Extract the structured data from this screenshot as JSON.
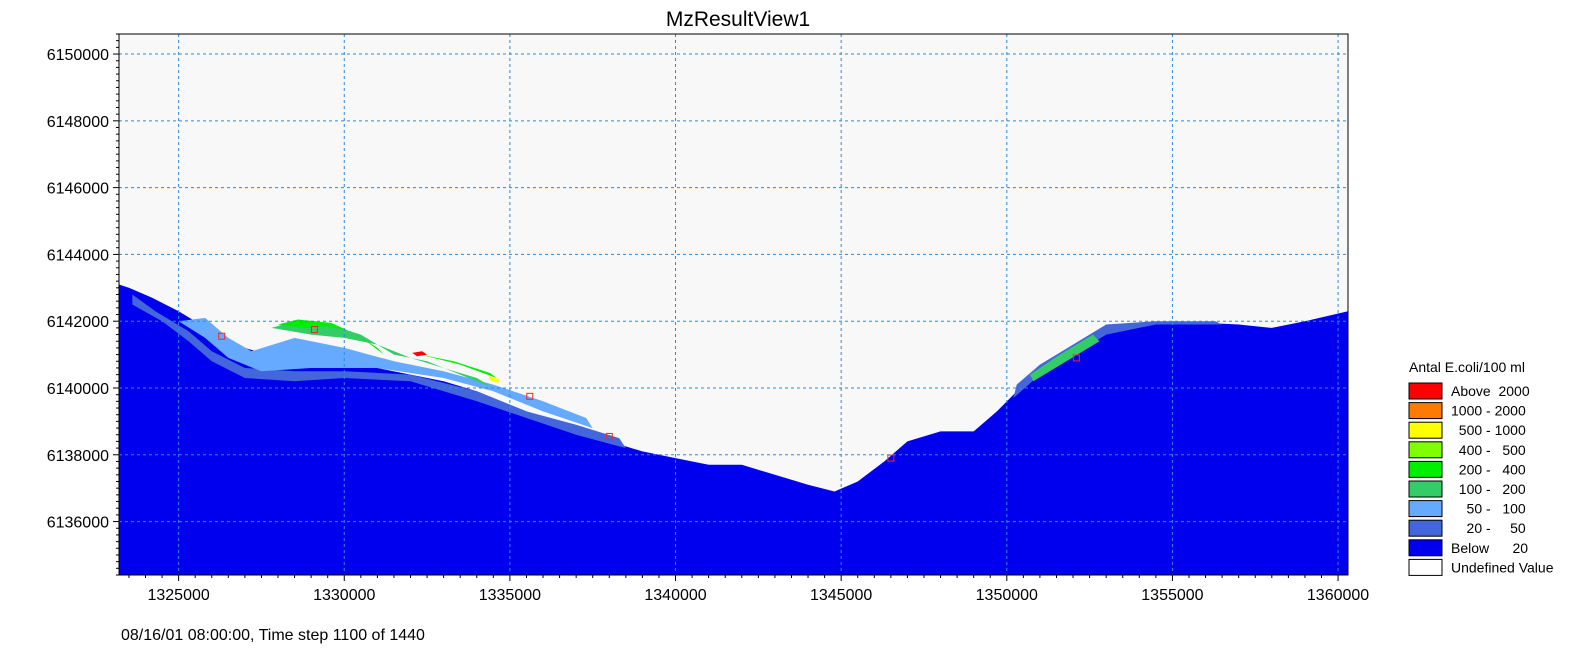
{
  "chart_data": {
    "type": "heatmap",
    "title": "MzResultView1",
    "status_text": "08/16/01 08:00:00, Time step 1100 of 1440",
    "xlim": [
      1323200,
      1360300
    ],
    "ylim": [
      6134400,
      6150600
    ],
    "grid": true,
    "grid_color": "#2a8ae0",
    "background_color": "#f8f8f8",
    "x_ticks": [
      1325000,
      1330000,
      1335000,
      1340000,
      1345000,
      1350000,
      1355000,
      1360000
    ],
    "x_tick_labels": [
      "1325000",
      "1330000",
      "1335000",
      "1340000",
      "1345000",
      "1350000",
      "1355000",
      "1360000"
    ],
    "y_ticks": [
      6136000,
      6138000,
      6140000,
      6142000,
      6144000,
      6146000,
      6148000,
      6150000
    ],
    "y_tick_labels": [
      "6136000",
      "6138000",
      "6140000",
      "6142000",
      "6144000",
      "6146000",
      "6148000",
      "6150000"
    ],
    "legend": {
      "title": "Antal E.coli/100 ml",
      "placement": "right",
      "items": [
        {
          "label": "Above  2000",
          "color": "#ff0000"
        },
        {
          "label": "1000 - 2000",
          "color": "#ff7a00"
        },
        {
          "label": "  500 - 1000",
          "color": "#ffff00"
        },
        {
          "label": "  400 -   500",
          "color": "#7fff00"
        },
        {
          "label": "  200 -   400",
          "color": "#00ee00"
        },
        {
          "label": "  100 -   200",
          "color": "#33cc66"
        },
        {
          "label": "    50 -   100",
          "color": "#66aaff"
        },
        {
          "label": "    20 -     50",
          "color": "#4466dd"
        },
        {
          "label": "Below      20",
          "color": "#0000ee"
        },
        {
          "label": "Undefined Value",
          "color": "#ffffff"
        }
      ]
    },
    "regions": [
      {
        "name": "below-20",
        "color": "#0000ee",
        "points": [
          [
            1323200,
            6143100
          ],
          [
            1323500,
            6143000
          ],
          [
            1324200,
            6142700
          ],
          [
            1325000,
            6142300
          ],
          [
            1326000,
            6141700
          ],
          [
            1327000,
            6141200
          ],
          [
            1328000,
            6140900
          ],
          [
            1329000,
            6140800
          ],
          [
            1330000,
            6140700
          ],
          [
            1331000,
            6140600
          ],
          [
            1332000,
            6140400
          ],
          [
            1333000,
            6140200
          ],
          [
            1334000,
            6139900
          ],
          [
            1335000,
            6139500
          ],
          [
            1336000,
            6139100
          ],
          [
            1337000,
            6138700
          ],
          [
            1338000,
            6138400
          ],
          [
            1339000,
            6138100
          ],
          [
            1340000,
            6137900
          ],
          [
            1341000,
            6137700
          ],
          [
            1342000,
            6137700
          ],
          [
            1343000,
            6137400
          ],
          [
            1344000,
            6137100
          ],
          [
            1344800,
            6136900
          ],
          [
            1345500,
            6137200
          ],
          [
            1346300,
            6137800
          ],
          [
            1347000,
            6138400
          ],
          [
            1348000,
            6138700
          ],
          [
            1349000,
            6138700
          ],
          [
            1349700,
            6139300
          ],
          [
            1350500,
            6140100
          ],
          [
            1351500,
            6140800
          ],
          [
            1352500,
            6141500
          ],
          [
            1353500,
            6141900
          ],
          [
            1355000,
            6142000
          ],
          [
            1357000,
            6141900
          ],
          [
            1358000,
            6141800
          ],
          [
            1359000,
            6142000
          ],
          [
            1360300,
            6142300
          ],
          [
            1360300,
            6134400
          ],
          [
            1323200,
            6134400
          ]
        ]
      },
      {
        "name": "20-50",
        "color": "#4466dd",
        "points": [
          [
            1323600,
            6142500
          ],
          [
            1324500,
            6142000
          ],
          [
            1325300,
            6141400
          ],
          [
            1326000,
            6140800
          ],
          [
            1327000,
            6140300
          ],
          [
            1328500,
            6140200
          ],
          [
            1330000,
            6140300
          ],
          [
            1332000,
            6140200
          ],
          [
            1334000,
            6139600
          ],
          [
            1335500,
            6139100
          ],
          [
            1337000,
            6138600
          ],
          [
            1338500,
            6138200
          ],
          [
            1338300,
            6138500
          ],
          [
            1337000,
            6138900
          ],
          [
            1335500,
            6139300
          ],
          [
            1334000,
            6139900
          ],
          [
            1332000,
            6140400
          ],
          [
            1330000,
            6140500
          ],
          [
            1328500,
            6140500
          ],
          [
            1327000,
            6140600
          ],
          [
            1326000,
            6141100
          ],
          [
            1325300,
            6141700
          ],
          [
            1324300,
            6142300
          ],
          [
            1323600,
            6142800
          ]
        ]
      },
      {
        "name": "20-50-east",
        "color": "#4466dd",
        "points": [
          [
            1350200,
            6139700
          ],
          [
            1351000,
            6140400
          ],
          [
            1352000,
            6141000
          ],
          [
            1353000,
            6141600
          ],
          [
            1354500,
            6141900
          ],
          [
            1356500,
            6141900
          ],
          [
            1356300,
            6142000
          ],
          [
            1354500,
            6142000
          ],
          [
            1353000,
            6141900
          ],
          [
            1352000,
            6141300
          ],
          [
            1351000,
            6140700
          ],
          [
            1350300,
            6140100
          ]
        ]
      },
      {
        "name": "50-100",
        "color": "#66aaff",
        "points": [
          [
            1325000,
            6142000
          ],
          [
            1325800,
            6141500
          ],
          [
            1326500,
            6140900
          ],
          [
            1327500,
            6140500
          ],
          [
            1329000,
            6140600
          ],
          [
            1331000,
            6140600
          ],
          [
            1333000,
            6140300
          ],
          [
            1334500,
            6139900
          ],
          [
            1336000,
            6139300
          ],
          [
            1337500,
            6138800
          ],
          [
            1337300,
            6139100
          ],
          [
            1336000,
            6139600
          ],
          [
            1334500,
            6140100
          ],
          [
            1333000,
            6140500
          ],
          [
            1331500,
            6140800
          ],
          [
            1330000,
            6141200
          ],
          [
            1328500,
            6141500
          ],
          [
            1327200,
            6141100
          ],
          [
            1326500,
            6141500
          ],
          [
            1325800,
            6142100
          ]
        ]
      },
      {
        "name": "100-200",
        "color": "#33cc66",
        "points": [
          [
            1327800,
            6141800
          ],
          [
            1328500,
            6142000
          ],
          [
            1329500,
            6141900
          ],
          [
            1330500,
            6141600
          ],
          [
            1331500,
            6141000
          ],
          [
            1332500,
            6140800
          ],
          [
            1333500,
            6140400
          ],
          [
            1334500,
            6140000
          ],
          [
            1334000,
            6140300
          ],
          [
            1333000,
            6140600
          ],
          [
            1332000,
            6140900
          ],
          [
            1331000,
            6141300
          ],
          [
            1330000,
            6141500
          ],
          [
            1329000,
            6141600
          ]
        ]
      },
      {
        "name": "200-400",
        "color": "#00ee00",
        "points": [
          [
            1328000,
            6141900
          ],
          [
            1328600,
            6142050
          ],
          [
            1329600,
            6141950
          ],
          [
            1330400,
            6141600
          ],
          [
            1331200,
            6141000
          ],
          [
            1331000,
            6141200
          ],
          [
            1330200,
            6141700
          ],
          [
            1329500,
            6141850
          ],
          [
            1328800,
            6141800
          ]
        ]
      },
      {
        "name": "200-400-b",
        "color": "#00ee00",
        "points": [
          [
            1332300,
            6141000
          ],
          [
            1333500,
            6140700
          ],
          [
            1334600,
            6140300
          ],
          [
            1334400,
            6140450
          ],
          [
            1333300,
            6140800
          ]
        ]
      },
      {
        "name": "100-200-east",
        "color": "#33cc66",
        "points": [
          [
            1350800,
            6140200
          ],
          [
            1351800,
            6140800
          ],
          [
            1352800,
            6141400
          ],
          [
            1352600,
            6141600
          ],
          [
            1351600,
            6141000
          ],
          [
            1350700,
            6140400
          ]
        ]
      },
      {
        "name": "above-2000",
        "color": "#ff0000",
        "points": [
          [
            1332050,
            6141050
          ],
          [
            1332350,
            6141100
          ],
          [
            1332500,
            6141000
          ],
          [
            1332200,
            6140950
          ]
        ]
      },
      {
        "name": "500-1000",
        "color": "#ffff00",
        "points": [
          [
            1334400,
            6140350
          ],
          [
            1334700,
            6140250
          ],
          [
            1334650,
            6140150
          ],
          [
            1334350,
            6140250
          ]
        ]
      }
    ],
    "stations": [
      [
        1326300,
        6141550
      ],
      [
        1329100,
        6141750
      ],
      [
        1335600,
        6139750
      ],
      [
        1338000,
        6138550
      ],
      [
        1346500,
        6137900
      ],
      [
        1352100,
        6140900
      ]
    ]
  }
}
